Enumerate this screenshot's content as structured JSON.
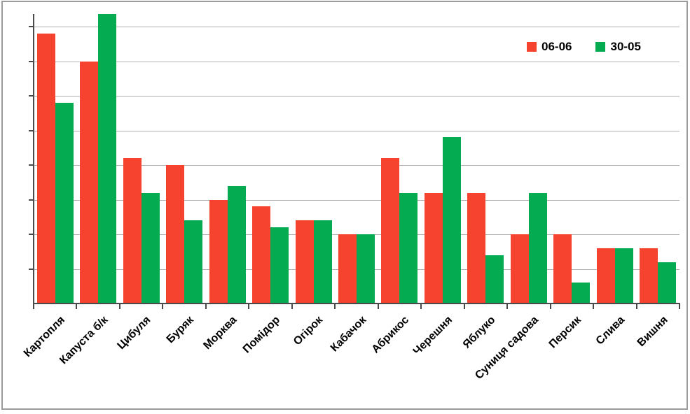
{
  "legend": {
    "items": [
      {
        "label": "06-06",
        "color": "#f6432f"
      },
      {
        "label": "30-05",
        "color": "#05ab51"
      }
    ]
  },
  "chart_data": {
    "type": "bar",
    "title": "",
    "xlabel": "",
    "ylabel": "",
    "categories": [
      "Картопля",
      "Капуста б/к",
      "Цибуля",
      "Буряк",
      "Морква",
      "Помідор",
      "Огірок",
      "Кабачок",
      "Абрикос",
      "Черешня",
      "Яблуко",
      "Суниця садова",
      "Персик",
      "Слива",
      "Вишня"
    ],
    "series": [
      {
        "name": "06-06",
        "color": "#f6432f",
        "values": [
          78,
          70,
          42,
          40,
          30,
          28,
          24,
          20,
          42,
          32,
          32,
          20,
          20,
          16,
          16
        ]
      },
      {
        "name": "30-05",
        "color": "#05ab51",
        "values": [
          58,
          84,
          32,
          24,
          34,
          22,
          24,
          20,
          32,
          48,
          14,
          32,
          6,
          16,
          12
        ]
      }
    ],
    "ylim": [
      0,
      84
    ],
    "gridline_interval": 10,
    "gridlines_visible": true,
    "y_axis_tick_labels_visible": false,
    "legend_position": "top-right",
    "grid_color": "#b0b0b0",
    "axis_color": "#4a4a4a"
  }
}
